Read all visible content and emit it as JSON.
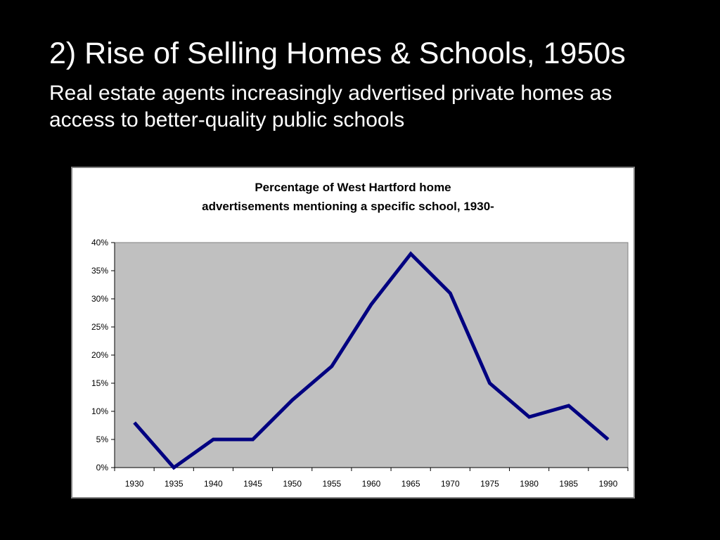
{
  "slide": {
    "title": "2) Rise of Selling Homes & Schools, 1950s",
    "subtitle": "Real estate agents increasingly advertised private homes as access to better-quality public schools"
  },
  "colors": {
    "background": "#000000",
    "text": "#ffffff",
    "plot_area": "#c0c0c0",
    "series_line": "#000080"
  },
  "chart_data": {
    "type": "line",
    "title_lines": [
      "Percentage of West Hartford home",
      "advertisements mentioning a specific school, 1930-"
    ],
    "categories": [
      "1930",
      "1935",
      "1940",
      "1945",
      "1950",
      "1955",
      "1960",
      "1965",
      "1970",
      "1975",
      "1980",
      "1985",
      "1990"
    ],
    "series": [
      {
        "values": [
          8,
          0,
          5,
          5,
          12,
          18,
          29,
          38,
          31,
          15,
          9,
          11,
          5
        ]
      }
    ],
    "ylim": [
      0,
      40
    ],
    "yticks": [
      0,
      5,
      10,
      15,
      20,
      25,
      30,
      35,
      40
    ],
    "ytick_format": "percent",
    "grid": false,
    "legend": "none"
  }
}
